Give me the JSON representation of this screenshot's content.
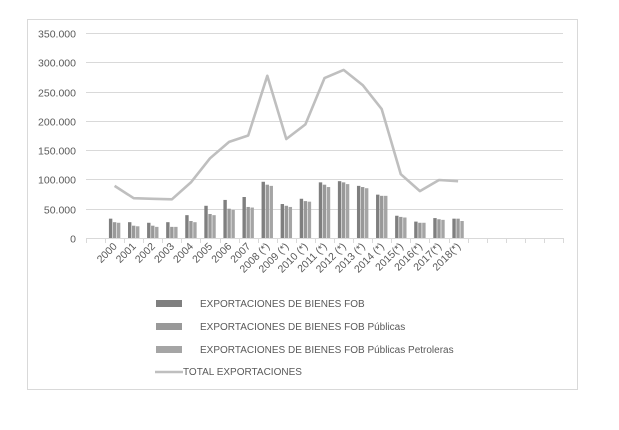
{
  "chart_data": {
    "type": "bar",
    "title": "",
    "xlabel": "",
    "ylabel": "",
    "ylim": [
      0,
      350000
    ],
    "yticks": [
      "0",
      "50.000",
      "100.000",
      "150.000",
      "200.000",
      "250.000",
      "300.000",
      "350.000"
    ],
    "grid": true,
    "legend_position": "bottom",
    "categories": [
      "2000",
      "2001",
      "2002",
      "2003",
      "2004",
      "2005",
      "2006",
      "2007",
      "2008 (*)",
      "2009 (*)",
      "2010 (*)",
      "2011 (*)",
      "2012 (*)",
      "2013 (*)",
      "2014 (*)",
      "2015(*)",
      "2016(*)",
      "2017(*)",
      "2018(*)"
    ],
    "series": [
      {
        "name": "EXPORTACIONES DE BIENES FOB",
        "type": "bar",
        "color": "#7f7f7f",
        "values": [
          33000,
          27000,
          26000,
          27000,
          39000,
          55000,
          65000,
          70000,
          96000,
          58000,
          67000,
          95000,
          97000,
          89000,
          74000,
          38000,
          28000,
          34000,
          33000
        ]
      },
      {
        "name": "EXPORTACIONES DE BIENES FOB Públicas",
        "type": "bar",
        "color": "#999999",
        "values": [
          27000,
          21000,
          21000,
          19000,
          29000,
          41000,
          50000,
          53000,
          91000,
          55000,
          63000,
          91000,
          95000,
          87000,
          72000,
          36000,
          26000,
          32000,
          33000
        ]
      },
      {
        "name": "EXPORTACIONES DE BIENES FOB Públicas Petroleras",
        "type": "bar",
        "color": "#a5a5a5",
        "values": [
          26000,
          20000,
          19000,
          19000,
          27000,
          39000,
          48000,
          52000,
          89000,
          53000,
          62000,
          87000,
          92000,
          85000,
          72000,
          35000,
          26000,
          31000,
          29000
        ]
      },
      {
        "name": "TOTAL EXPORTACIONES",
        "type": "line",
        "color": "#bfbfbf",
        "values": [
          89000,
          68000,
          67000,
          66000,
          95000,
          136000,
          164000,
          175000,
          277000,
          169000,
          194000,
          273000,
          287000,
          261000,
          220000,
          109000,
          80000,
          99000,
          97000
        ]
      }
    ]
  },
  "legend": {
    "items": [
      {
        "label": "EXPORTACIONES DE BIENES FOB",
        "swatch": "bar",
        "color": "#7f7f7f"
      },
      {
        "label": "EXPORTACIONES DE BIENES FOB Públicas",
        "swatch": "bar",
        "color": "#999999"
      },
      {
        "label": "EXPORTACIONES DE BIENES FOB Públicas Petroleras",
        "swatch": "bar",
        "color": "#a5a5a5"
      },
      {
        "label": "TOTAL EXPORTACIONES",
        "swatch": "line",
        "color": "#bfbfbf"
      }
    ]
  },
  "style": {
    "grid_color": "#d9d9d9",
    "text_color": "#595959",
    "border_color": "#d9d9d9"
  }
}
